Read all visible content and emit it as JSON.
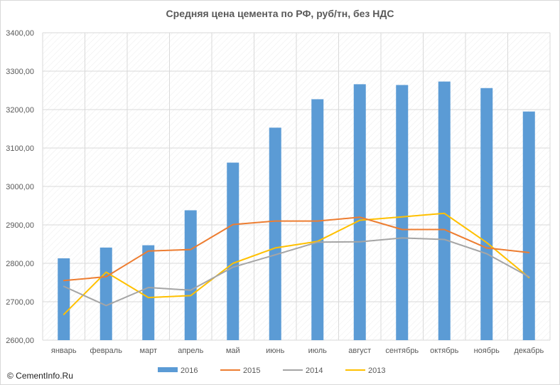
{
  "copyright": "© CementInfo.Ru",
  "colors": {
    "bar_2016": "#5b9bd5",
    "line_2015": "#ed7d31",
    "line_2014": "#a5a5a5",
    "line_2013": "#ffc000"
  },
  "chart_data": {
    "type": "bar",
    "title": "Средняя цена цемента по РФ, руб/тн, без НДС",
    "xlabel": "",
    "ylabel": "",
    "ylim": [
      2600,
      3400
    ],
    "yticks": [
      "2600,00",
      "2700,00",
      "2800,00",
      "2900,00",
      "3000,00",
      "3100,00",
      "3200,00",
      "3300,00",
      "3400,00"
    ],
    "grid": true,
    "legend_position": "bottom",
    "categories": [
      "январь",
      "февраль",
      "март",
      "апрель",
      "май",
      "июнь",
      "июль",
      "август",
      "сентябрь",
      "октябрь",
      "ноябрь",
      "декабрь"
    ],
    "series": [
      {
        "name": "2016",
        "kind": "bar",
        "color": "#5b9bd5",
        "values": [
          2813,
          2841,
          2847,
          2938,
          3062,
          3153,
          3227,
          3266,
          3264,
          3273,
          3256,
          3195
        ]
      },
      {
        "name": "2015",
        "kind": "line",
        "color": "#ed7d31",
        "values": [
          2755,
          2765,
          2832,
          2836,
          2901,
          2910,
          2910,
          2920,
          2888,
          2888,
          2840,
          2828
        ]
      },
      {
        "name": "2014",
        "kind": "line",
        "color": "#a5a5a5",
        "values": [
          2740,
          2690,
          2737,
          2730,
          2790,
          2822,
          2855,
          2856,
          2866,
          2862,
          2825,
          2765
        ]
      },
      {
        "name": "2013",
        "kind": "line",
        "color": "#ffc000",
        "values": [
          2667,
          2777,
          2711,
          2716,
          2800,
          2840,
          2857,
          2912,
          2921,
          2930,
          2854,
          2763
        ]
      }
    ]
  }
}
